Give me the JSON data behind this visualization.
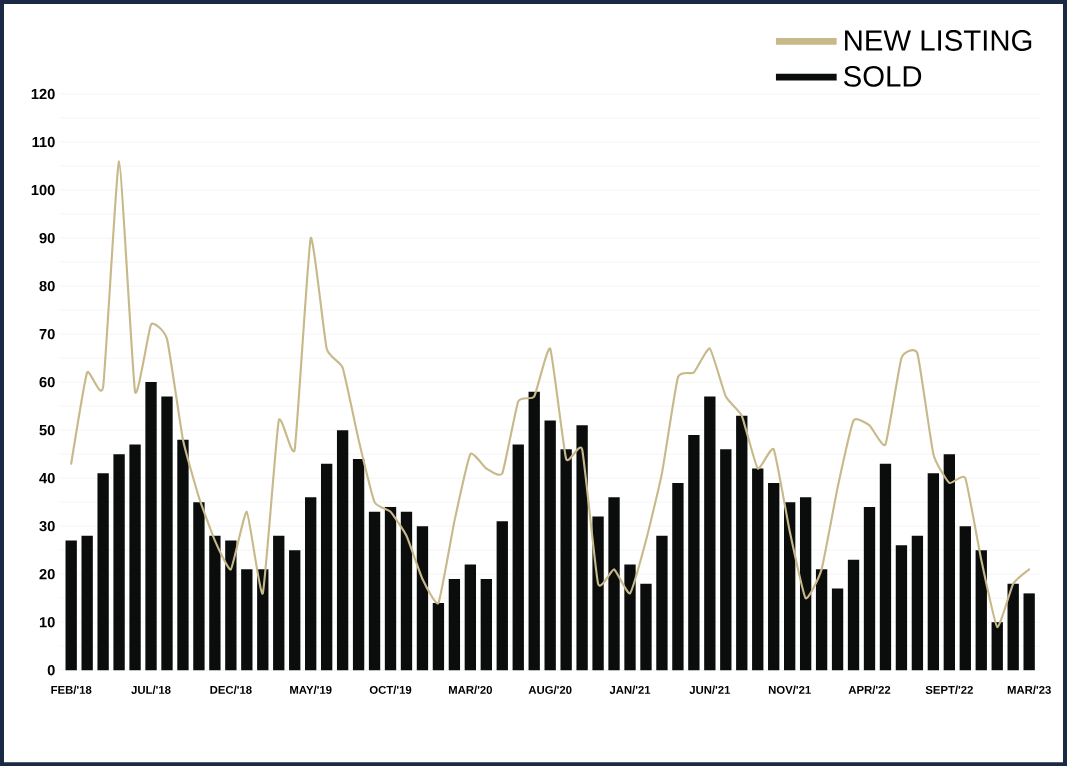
{
  "chart_data": {
    "type": "bar",
    "categories": [
      "FEB/'18",
      null,
      null,
      null,
      null,
      "JUL/'18",
      null,
      null,
      null,
      null,
      "DEC/'18",
      null,
      null,
      null,
      null,
      "MAY/'19",
      null,
      null,
      null,
      null,
      "OCT/'19",
      null,
      null,
      null,
      null,
      "MAR/'20",
      null,
      null,
      null,
      null,
      "AUG/'20",
      null,
      null,
      null,
      null,
      "JAN/'21",
      null,
      null,
      null,
      null,
      "JUN/'21",
      null,
      null,
      null,
      null,
      "NOV/'21",
      null,
      null,
      null,
      null,
      "APR/'22",
      null,
      null,
      null,
      null,
      "SEPT/'22",
      null,
      null,
      null,
      null,
      "MAR/'23"
    ],
    "series": [
      {
        "name": "NEW LISTING",
        "type": "line",
        "color": "#c8b98b",
        "values": [
          43,
          62,
          59,
          106,
          58,
          72,
          69,
          48,
          36,
          27,
          21,
          33,
          16,
          52,
          46,
          90,
          67,
          63,
          48,
          35,
          33,
          28,
          19,
          14,
          31,
          45,
          42,
          41,
          56,
          57,
          67,
          44,
          46,
          18,
          21,
          16,
          27,
          41,
          61,
          62,
          67,
          57,
          53,
          42,
          46,
          29,
          15,
          21,
          38,
          52,
          51,
          47,
          65,
          66,
          45,
          39,
          40,
          23,
          9,
          18,
          21
        ]
      },
      {
        "name": "SOLD",
        "color": "#0b0c0c",
        "values": [
          27,
          28,
          41,
          45,
          47,
          60,
          57,
          48,
          35,
          28,
          27,
          21,
          21,
          28,
          25,
          36,
          43,
          50,
          44,
          33,
          34,
          33,
          30,
          14,
          19,
          22,
          19,
          31,
          47,
          58,
          52,
          46,
          51,
          32,
          36,
          22,
          18,
          28,
          39,
          49,
          57,
          46,
          53,
          42,
          39,
          35,
          36,
          21,
          17,
          23,
          34,
          43,
          26,
          28,
          41,
          45,
          30,
          25,
          10,
          18,
          16
        ]
      }
    ],
    "ylim": [
      0,
      120
    ],
    "yticks": [
      0,
      10,
      20,
      30,
      40,
      50,
      60,
      70,
      80,
      90,
      100,
      110,
      120
    ],
    "grid": "y",
    "legend": "top right"
  }
}
